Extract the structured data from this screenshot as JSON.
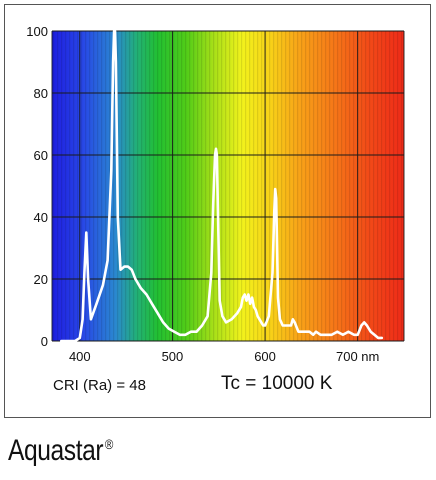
{
  "chart_data": {
    "type": "line",
    "title": "",
    "xlabel": "",
    "ylabel": "",
    "xlim": [
      370,
      750
    ],
    "ylim": [
      0,
      100
    ],
    "x_ticks": [
      400,
      500,
      600,
      700
    ],
    "x_tick_labels": [
      "400",
      "500",
      "600",
      "700 nm"
    ],
    "y_ticks": [
      0,
      20,
      40,
      60,
      80,
      100
    ],
    "y_tick_labels": [
      "0",
      "20",
      "40",
      "60",
      "80",
      "100"
    ],
    "grid": true,
    "background": "visible spectrum gradient",
    "line_color": "#ffffff",
    "series": [
      {
        "x": [
          380,
          395,
          400,
          403,
          405,
          407,
          409,
          412,
          418,
          425,
          430,
          434,
          436,
          437,
          438,
          439,
          441,
          444,
          448,
          452,
          456,
          460,
          466,
          472,
          478,
          484,
          490,
          496,
          502,
          508,
          514,
          520,
          526,
          532,
          538,
          542,
          544,
          546,
          547,
          548,
          549,
          551,
          554,
          558,
          564,
          570,
          574,
          576,
          578,
          580,
          582,
          584,
          586,
          588,
          590,
          592,
          594,
          596,
          598,
          600,
          604,
          608,
          610,
          611,
          612,
          613,
          614,
          616,
          619,
          624,
          628,
          630,
          632,
          636,
          642,
          648,
          652,
          655,
          660,
          666,
          672,
          678,
          684,
          690,
          696,
          700,
          704,
          707,
          710,
          714,
          718,
          722,
          726
        ],
        "y": [
          0,
          0,
          1,
          7,
          22,
          35,
          20,
          7,
          12,
          18,
          26,
          55,
          90,
          100,
          100,
          90,
          40,
          23,
          24,
          24,
          23,
          20,
          17,
          15,
          12,
          9,
          6,
          4,
          3,
          2,
          2,
          3,
          3,
          5,
          8,
          22,
          44,
          60,
          62,
          60,
          44,
          13,
          8,
          6,
          7,
          9,
          11,
          14,
          15,
          13,
          15,
          12,
          14,
          11,
          10,
          8,
          7,
          6,
          5,
          5,
          8,
          22,
          42,
          49,
          46,
          30,
          14,
          7,
          5,
          5,
          5,
          7,
          6,
          3,
          3,
          3,
          2,
          3,
          2,
          2,
          2,
          3,
          2,
          3,
          2,
          2,
          5,
          6,
          5,
          3,
          2,
          1,
          1
        ]
      }
    ],
    "annotations": {
      "cri": "CRI (Ra) = 48",
      "tc": "Tc = 10000 K"
    }
  },
  "brand": {
    "name": "Aquastar",
    "mark": "®"
  }
}
